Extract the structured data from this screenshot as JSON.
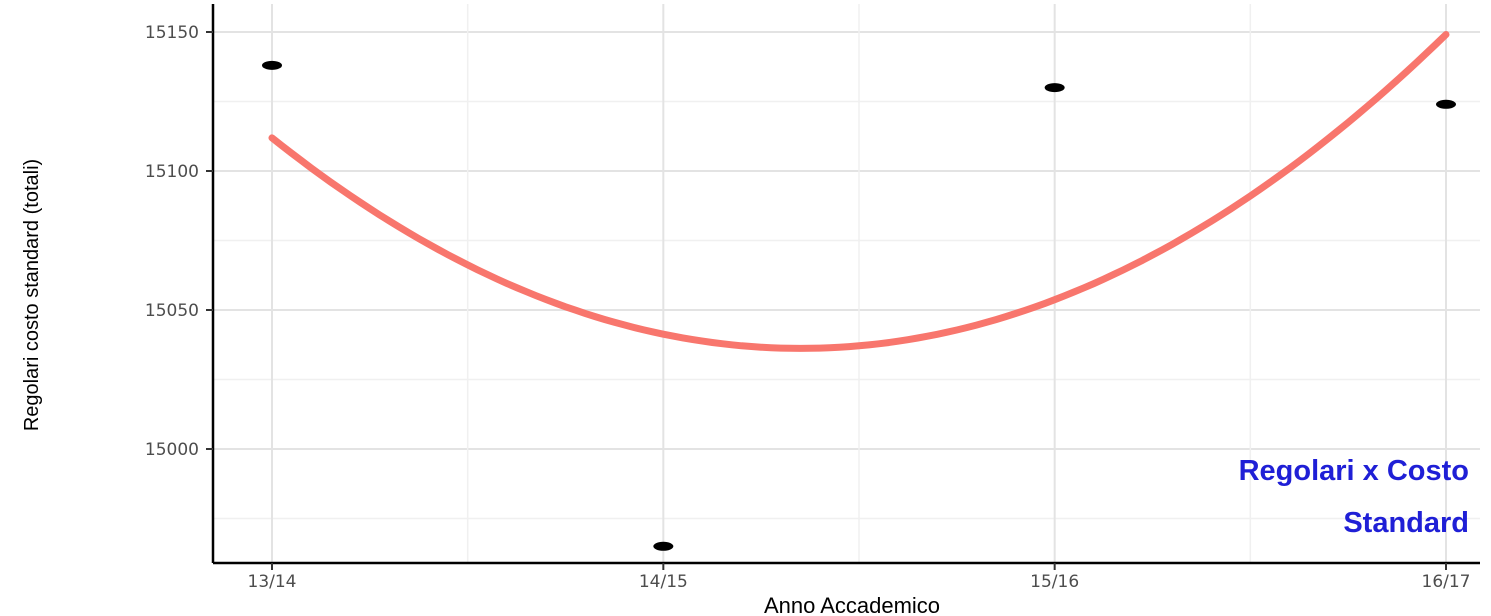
{
  "chart_data": {
    "type": "scatter",
    "title": "",
    "xlabel": "Anno Accademico",
    "ylabel": "Regolari costo standard (totali)",
    "categories": [
      "13/14",
      "14/15",
      "15/16",
      "16/17"
    ],
    "points": [
      {
        "x": "13/14",
        "y": 15138
      },
      {
        "x": "14/15",
        "y": 14965
      },
      {
        "x": "15/16",
        "y": 15130
      },
      {
        "x": "16/17",
        "y": 15124
      }
    ],
    "fit_curve": {
      "color": "#f8766d",
      "values": [
        15112,
        15041,
        15054,
        15149
      ]
    },
    "y_ticks": [
      15000,
      15050,
      15100,
      15150
    ],
    "ylim": [
      14958,
      15160
    ],
    "grid": true,
    "annotation": [
      "Regolari x Costo",
      "Standard"
    ],
    "annotation_color": "#1f1fd6",
    "point_color": "#000000"
  }
}
